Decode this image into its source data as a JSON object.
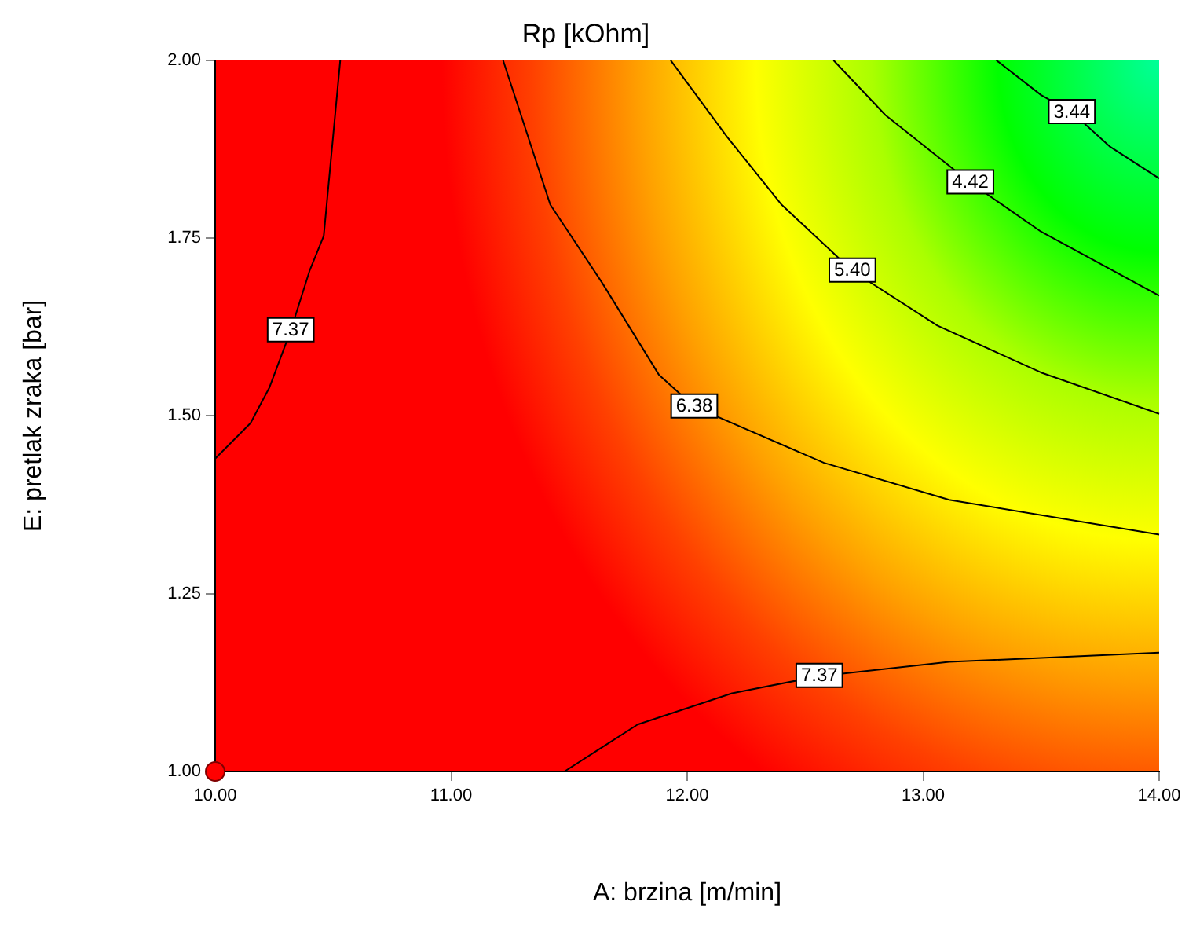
{
  "chart_data": {
    "type": "line",
    "title": "Rp [kOhm]",
    "xlabel": "A: brzina [m/min]",
    "ylabel": "E: pretlak zraka [bar]",
    "xlim": [
      10,
      14
    ],
    "ylim": [
      1,
      2
    ],
    "xticks": [
      {
        "value": 10,
        "label": "10.00"
      },
      {
        "value": 11,
        "label": "11.00"
      },
      {
        "value": 12,
        "label": "12.00"
      },
      {
        "value": 13,
        "label": "13.00"
      },
      {
        "value": 14,
        "label": "14.00"
      }
    ],
    "yticks": [
      {
        "value": 1,
        "label": "1.00"
      },
      {
        "value": 1.25,
        "label": "1.25"
      },
      {
        "value": 1.5,
        "label": "1.50"
      },
      {
        "value": 1.75,
        "label": "1.75"
      },
      {
        "value": 2,
        "label": "2.00"
      }
    ],
    "grid": false,
    "legend": false,
    "marker": "none",
    "line_style": "solid",
    "series": [
      {
        "name": "7.37",
        "color": "#000000",
        "x": [
          10.53,
          10.46,
          10.4,
          10.32,
          10.23,
          10.15,
          10.0
        ],
        "values": [
          2.0,
          1.753,
          1.704,
          1.62,
          1.54,
          1.49,
          1.44
        ]
      },
      {
        "name": "6.38",
        "color": "#000000",
        "x": [
          11.22,
          11.42,
          11.64,
          11.88,
          12.03,
          12.58,
          13.11,
          14.0
        ],
        "values": [
          2.0,
          1.797,
          1.687,
          1.558,
          1.513,
          1.434,
          1.382,
          1.333
        ]
      },
      {
        "name": "5.40",
        "color": "#000000",
        "x": [
          11.93,
          12.17,
          12.4,
          12.7,
          13.06,
          13.5,
          14.0
        ],
        "values": [
          2.0,
          1.892,
          1.797,
          1.704,
          1.627,
          1.561,
          1.503
        ]
      },
      {
        "name": "4.42",
        "color": "#000000",
        "x": [
          12.62,
          12.84,
          13.2,
          13.5,
          14.0
        ],
        "values": [
          2.0,
          1.923,
          1.828,
          1.759,
          1.669
        ]
      },
      {
        "name": "3.44",
        "color": "#000000",
        "x": [
          13.31,
          13.5,
          13.63,
          13.79,
          14.0
        ],
        "values": [
          2.0,
          1.951,
          1.927,
          1.879,
          1.834
        ]
      },
      {
        "name": "7.37",
        "color": "#000000",
        "x": [
          11.48,
          11.79,
          12.19,
          12.56,
          13.11,
          14.0
        ],
        "values": [
          1.0,
          1.066,
          1.11,
          1.134,
          1.154,
          1.167
        ]
      },
      {
        "type": "scatter",
        "color": "#ff0000",
        "marker": "circle",
        "x": [
          10
        ],
        "values": [
          1
        ]
      }
    ]
  }
}
